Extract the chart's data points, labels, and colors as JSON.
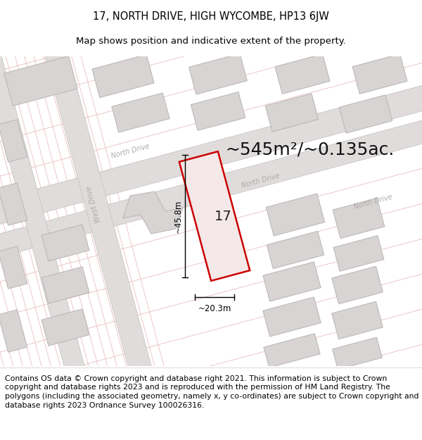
{
  "title_line1": "17, NORTH DRIVE, HIGH WYCOMBE, HP13 6JW",
  "title_line2": "Map shows position and indicative extent of the property.",
  "footer_text": "Contains OS data © Crown copyright and database right 2021. This information is subject to Crown copyright and database rights 2023 and is reproduced with the permission of HM Land Registry. The polygons (including the associated geometry, namely x, y co-ordinates) are subject to Crown copyright and database rights 2023 Ordnance Survey 100026316.",
  "area_label": "~545m²/~0.135ac.",
  "property_number": "17",
  "dim_width": "~20.3m",
  "dim_height": "~45.8m",
  "map_bg": "#f0eeee",
  "road_fill": "#e0dcdc",
  "road_edge": "#c8c4c4",
  "plot_fill": "#f5e8e8",
  "plot_edge": "#cc0000",
  "bldg_fill": "#d8d4d4",
  "bldg_edge": "#b8b4b4",
  "road_line_color": "#e8b8b8",
  "road_label_color": "#b0aaaa",
  "title_fontsize": 10.5,
  "subtitle_fontsize": 9.5,
  "footer_fontsize": 7.8,
  "area_fontsize": 18
}
